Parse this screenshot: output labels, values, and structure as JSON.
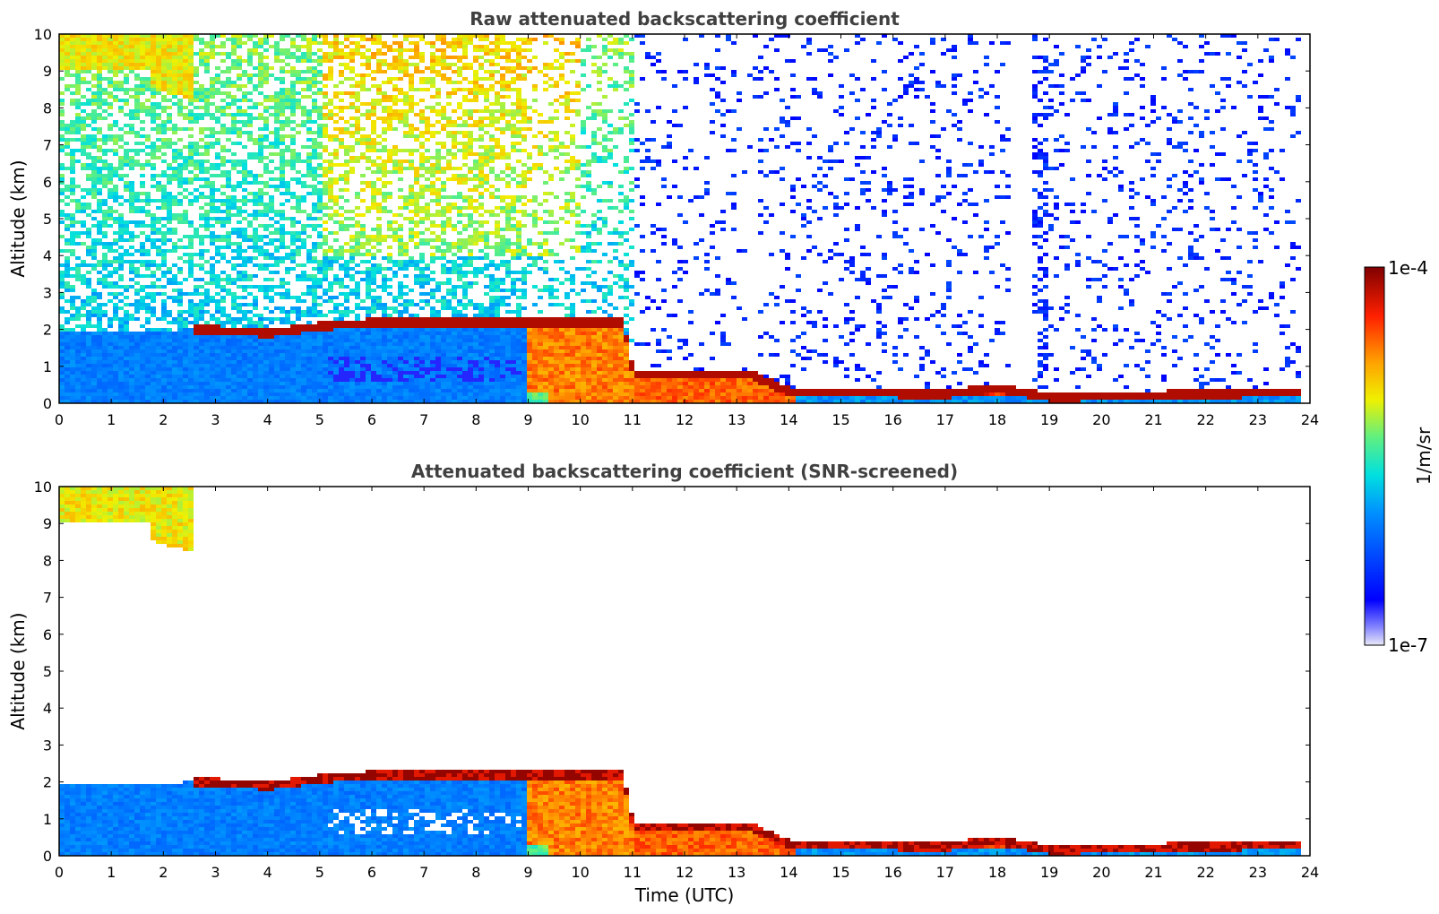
{
  "chart_data": [
    {
      "type": "heatmap",
      "title": "Raw attenuated backscattering coefficient",
      "xlabel": "",
      "ylabel": "Altitude (km)",
      "xlim": [
        0,
        24
      ],
      "ylim": [
        0,
        10
      ],
      "xticks": [
        "0",
        "1",
        "2",
        "3",
        "4",
        "5",
        "6",
        "7",
        "8",
        "9",
        "10",
        "11",
        "12",
        "13",
        "14",
        "15",
        "16",
        "17",
        "18",
        "19",
        "20",
        "21",
        "22",
        "23",
        "24"
      ],
      "yticks": [
        "0",
        "1",
        "2",
        "3",
        "4",
        "5",
        "6",
        "7",
        "8",
        "9",
        "10"
      ],
      "features": [
        {
          "name": "boundary layer top",
          "x": [
            2.6,
            4,
            5.5,
            7,
            8,
            9
          ],
          "y": [
            2.0,
            1.9,
            2.15,
            2.2,
            2.2,
            2.2
          ]
        },
        {
          "name": "high cirrus",
          "x": [
            0,
            2.6
          ],
          "y": [
            9.0,
            10.0
          ]
        },
        {
          "name": "low cloud layer",
          "x": [
            9,
            11,
            13.2,
            14,
            17,
            18,
            19,
            23.8
          ],
          "y": [
            2.2,
            0.8,
            0.8,
            0.3,
            0.25,
            0.4,
            0.15,
            0.3
          ]
        }
      ]
    },
    {
      "type": "heatmap",
      "title": "Attenuated backscattering coefficient (SNR-screened)",
      "xlabel": "Time (UTC)",
      "ylabel": "Altitude (km)",
      "xlim": [
        0,
        24
      ],
      "ylim": [
        0,
        10
      ],
      "xticks": [
        "0",
        "1",
        "2",
        "3",
        "4",
        "5",
        "6",
        "7",
        "8",
        "9",
        "10",
        "11",
        "12",
        "13",
        "14",
        "15",
        "16",
        "17",
        "18",
        "19",
        "20",
        "21",
        "22",
        "23",
        "24"
      ],
      "yticks": [
        "0",
        "1",
        "2",
        "3",
        "4",
        "5",
        "6",
        "7",
        "8",
        "9",
        "10"
      ]
    }
  ],
  "colorbar": {
    "max_label": "1e-4",
    "min_label": "1e-7",
    "unit_label": "1/m/sr",
    "colormap": "jet"
  }
}
